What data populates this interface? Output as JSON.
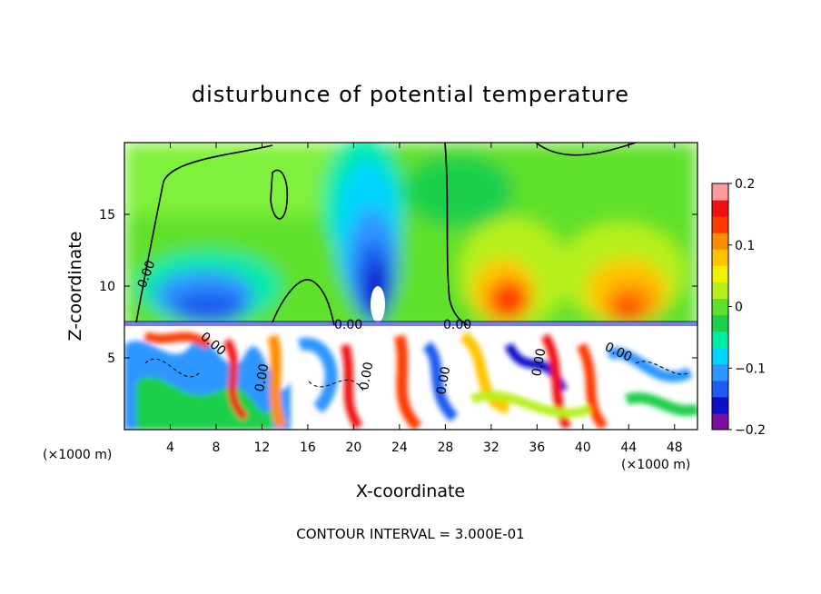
{
  "chart_data": {
    "type": "heatmap",
    "title": "disturbunce of potential temperature",
    "xlabel": "X-coordinate",
    "ylabel": "Z-coordinate",
    "x_unit": "(×1000 m)",
    "x_unit_right": "(×1000 m)",
    "xlim": [
      0,
      50
    ],
    "ylim": [
      0,
      20
    ],
    "xticks": [
      4,
      8,
      12,
      16,
      20,
      24,
      28,
      32,
      36,
      40,
      44,
      48
    ],
    "yticks": [
      5,
      10,
      15
    ],
    "colorbar": {
      "ticks": [
        0.2,
        0.1,
        0,
        -0.1,
        -0.2
      ],
      "tick_labels": [
        "0.2",
        "0.1",
        "0",
        "−0.1",
        "−0.2"
      ],
      "range": [
        -0.2,
        0.2
      ],
      "colors": [
        "#7b0fa0",
        "#1010c8",
        "#1e5cf0",
        "#2f96ff",
        "#00d4ff",
        "#00eaa8",
        "#1ccf4c",
        "#5fe02a",
        "#b6f01c",
        "#f0f000",
        "#ffc400",
        "#ff8c00",
        "#ff3b00",
        "#f01010",
        "#ff9a9a"
      ]
    },
    "contour_label": "0.00",
    "contour_interval_text": "CONTOUR INTERVAL =  3.000E-01"
  }
}
